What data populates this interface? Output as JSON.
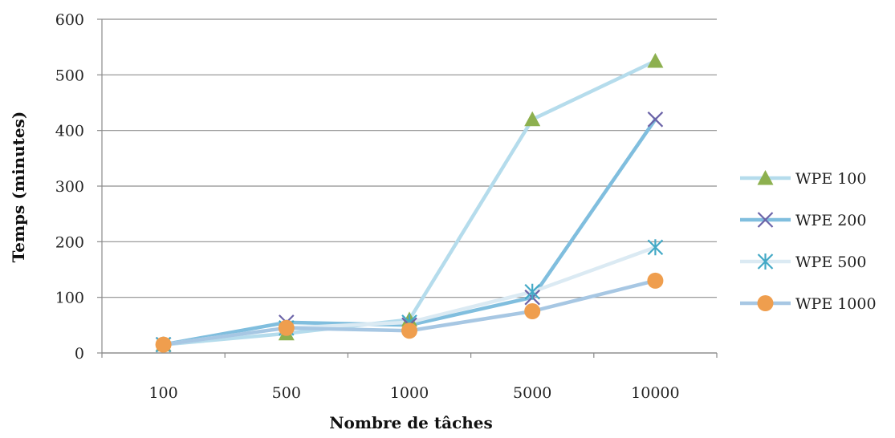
{
  "chart_data": {
    "type": "line",
    "title": "",
    "xlabel": "Nombre de tâches",
    "ylabel": "Temps (minutes)",
    "categories": [
      "100",
      "500",
      "1000",
      "5000",
      "10000"
    ],
    "ylim": [
      0,
      600
    ],
    "yticks": [
      0,
      100,
      200,
      300,
      400,
      500,
      600
    ],
    "grid": true,
    "legend_position": "right",
    "series": [
      {
        "name": "WPE 100",
        "values": [
          15,
          35,
          60,
          420,
          525
        ],
        "marker": "triangle",
        "marker_color": "#8db04f",
        "line_color": "#b5dcec"
      },
      {
        "name": "WPE 200",
        "values": [
          15,
          55,
          50,
          100,
          420
        ],
        "marker": "x",
        "marker_color": "#6b63a8",
        "line_color": "#80bede"
      },
      {
        "name": "WPE 500",
        "values": [
          15,
          45,
          55,
          110,
          190
        ],
        "marker": "star",
        "marker_color": "#43a9c6",
        "line_color": "#dbeaf3"
      },
      {
        "name": "WPE 1000",
        "values": [
          15,
          45,
          40,
          75,
          130
        ],
        "marker": "circle",
        "marker_color": "#ef9e4e",
        "line_color": "#a7c7e3"
      }
    ]
  }
}
